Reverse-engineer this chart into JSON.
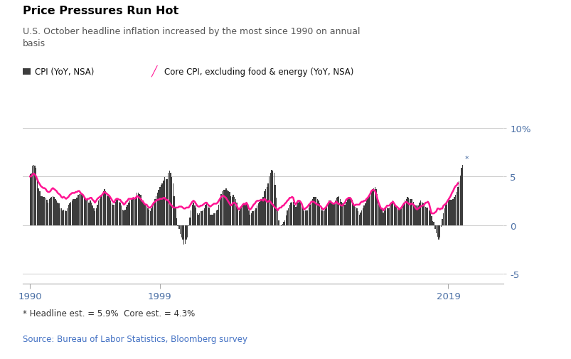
{
  "title": "Price Pressures Run Hot",
  "subtitle": "U.S. October headline inflation increased by the most since 1990 on annual\nbasis",
  "legend_cpi": "CPI (YoY, NSA)",
  "legend_core": "Core CPI, excluding food & energy (YoY, NSA)",
  "footnote": "* Headline est. = 5.9%  Core est. = 4.3%",
  "source": "Source: Bureau of Labor Statistics, Bloomberg survey",
  "bar_color": "#3d3d3d",
  "line_color": "#FF1493",
  "title_color": "#000000",
  "subtitle_color": "#555555",
  "source_color": "#4472C4",
  "footnote_color": "#333333",
  "axis_label_color": "#4a6fa5",
  "ylim": [
    -6,
    11
  ],
  "yticks": [
    -5,
    0,
    5,
    10
  ],
  "cpi_data": [
    5.2,
    5.3,
    6.1,
    6.2,
    6.1,
    5.9,
    4.8,
    3.8,
    3.5,
    3.0,
    3.0,
    2.9,
    2.9,
    2.8,
    2.6,
    2.3,
    2.7,
    2.8,
    2.9,
    3.0,
    2.9,
    2.7,
    2.5,
    2.3,
    2.2,
    1.7,
    1.7,
    1.5,
    1.6,
    1.5,
    1.4,
    1.7,
    2.1,
    2.2,
    2.4,
    2.5,
    2.7,
    2.7,
    2.7,
    2.8,
    3.1,
    3.2,
    3.3,
    3.2,
    3.0,
    2.9,
    2.7,
    2.5,
    2.6,
    2.3,
    2.5,
    2.3,
    2.0,
    1.7,
    1.4,
    1.7,
    2.1,
    2.5,
    2.7,
    3.0,
    3.1,
    3.5,
    3.7,
    3.5,
    3.3,
    3.0,
    2.9,
    2.5,
    2.2,
    2.1,
    2.1,
    2.4,
    2.6,
    2.6,
    2.4,
    2.3,
    2.0,
    1.6,
    1.5,
    1.6,
    1.9,
    2.1,
    2.3,
    2.5,
    2.6,
    2.7,
    2.8,
    2.8,
    2.9,
    3.3,
    3.3,
    3.2,
    3.1,
    2.7,
    2.5,
    2.2,
    2.1,
    2.0,
    1.7,
    1.6,
    1.4,
    1.7,
    2.1,
    2.4,
    2.7,
    3.0,
    3.3,
    3.6,
    3.9,
    4.1,
    4.3,
    4.6,
    4.9,
    4.7,
    4.7,
    5.4,
    5.6,
    5.4,
    4.9,
    4.3,
    3.0,
    1.8,
    0.7,
    -0.1,
    -0.4,
    -0.9,
    -1.3,
    -1.5,
    -2.0,
    -1.9,
    -1.5,
    -1.3,
    -0.1,
    0.8,
    1.5,
    2.1,
    2.3,
    2.0,
    1.8,
    1.2,
    1.1,
    1.2,
    1.4,
    1.4,
    1.6,
    1.7,
    2.1,
    2.3,
    2.0,
    1.8,
    1.1,
    1.1,
    1.1,
    1.2,
    1.2,
    1.5,
    1.6,
    2.1,
    2.7,
    3.2,
    3.5,
    3.6,
    3.6,
    3.8,
    3.6,
    3.5,
    3.4,
    3.0,
    2.9,
    3.1,
    2.9,
    2.7,
    2.3,
    1.7,
    1.4,
    1.7,
    1.8,
    2.0,
    2.2,
    2.1,
    2.3,
    2.0,
    1.5,
    1.1,
    1.2,
    1.4,
    1.4,
    1.5,
    1.7,
    2.0,
    2.2,
    2.4,
    2.5,
    2.7,
    2.9,
    3.5,
    3.7,
    3.9,
    4.3,
    5.0,
    5.4,
    5.7,
    5.6,
    5.4,
    4.1,
    2.8,
    1.5,
    0.5,
    0.0,
    -0.1,
    0.1,
    0.3,
    0.5,
    1.0,
    1.5,
    1.7,
    2.1,
    2.3,
    2.4,
    2.4,
    2.1,
    1.9,
    2.0,
    2.3,
    2.5,
    2.5,
    2.2,
    1.7,
    1.4,
    1.5,
    1.5,
    1.5,
    1.8,
    2.1,
    2.5,
    2.7,
    2.9,
    2.9,
    2.9,
    2.7,
    2.5,
    2.2,
    1.8,
    1.5,
    1.4,
    1.5,
    1.7,
    2.0,
    2.3,
    2.5,
    2.5,
    2.3,
    2.2,
    2.2,
    2.5,
    2.8,
    2.9,
    3.0,
    2.7,
    2.4,
    2.2,
    2.1,
    2.1,
    2.4,
    2.7,
    2.8,
    2.9,
    2.8,
    2.6,
    2.2,
    2.0,
    1.9,
    1.7,
    1.4,
    1.1,
    1.3,
    1.5,
    1.7,
    2.0,
    2.2,
    2.5,
    2.8,
    3.0,
    3.2,
    3.5,
    3.7,
    3.8,
    3.9,
    3.7,
    3.2,
    2.5,
    2.0,
    1.7,
    1.5,
    1.3,
    1.5,
    1.7,
    1.8,
    1.7,
    1.8,
    2.0,
    2.3,
    2.5,
    2.3,
    2.1,
    1.9,
    1.8,
    1.7,
    1.8,
    1.8,
    2.1,
    2.3,
    2.5,
    2.7,
    2.9,
    2.8,
    2.7,
    2.7,
    2.7,
    2.4,
    2.1,
    2.0,
    1.8,
    2.0,
    2.3,
    2.5,
    2.4,
    2.2,
    2.0,
    1.9,
    1.8,
    1.8,
    1.6,
    1.4,
    0.9,
    0.4,
    0.3,
    -0.4,
    -0.8,
    -1.2,
    -1.5,
    -1.3,
    -0.2,
    0.6,
    1.2,
    1.7,
    2.1,
    2.3,
    2.5,
    2.6,
    2.6,
    2.6,
    2.7,
    2.9,
    3.1,
    3.4,
    3.9,
    4.5,
    5.1,
    5.9,
    6.2
  ],
  "core_cpi_data": [
    5.0,
    5.0,
    5.2,
    5.3,
    5.2,
    5.0,
    4.7,
    4.4,
    4.2,
    4.0,
    3.9,
    3.8,
    3.8,
    3.7,
    3.5,
    3.4,
    3.4,
    3.5,
    3.7,
    3.8,
    3.7,
    3.6,
    3.5,
    3.3,
    3.2,
    3.1,
    2.9,
    2.8,
    2.9,
    2.8,
    2.7,
    2.8,
    2.9,
    3.1,
    3.2,
    3.3,
    3.3,
    3.3,
    3.4,
    3.4,
    3.5,
    3.5,
    3.3,
    3.2,
    3.1,
    2.9,
    2.7,
    2.6,
    2.7,
    2.7,
    2.8,
    2.8,
    2.6,
    2.5,
    2.3,
    2.5,
    2.7,
    2.8,
    2.9,
    3.0,
    3.1,
    3.3,
    3.4,
    3.3,
    3.2,
    3.1,
    3.0,
    2.8,
    2.6,
    2.4,
    2.3,
    2.6,
    2.7,
    2.7,
    2.6,
    2.6,
    2.4,
    2.3,
    2.1,
    2.2,
    2.4,
    2.5,
    2.7,
    2.7,
    2.7,
    2.7,
    2.8,
    2.7,
    2.8,
    3.0,
    2.9,
    2.8,
    2.7,
    2.5,
    2.4,
    2.2,
    2.1,
    2.1,
    1.9,
    1.8,
    1.8,
    1.9,
    2.1,
    2.3,
    2.4,
    2.5,
    2.6,
    2.6,
    2.7,
    2.7,
    2.7,
    2.8,
    2.8,
    2.6,
    2.6,
    2.5,
    2.3,
    2.1,
    2.0,
    1.8,
    1.8,
    1.8,
    1.8,
    1.8,
    1.9,
    1.9,
    1.9,
    1.8,
    1.7,
    1.7,
    1.8,
    1.8,
    1.8,
    2.0,
    2.2,
    2.4,
    2.5,
    2.4,
    2.2,
    2.0,
    1.9,
    1.9,
    2.0,
    2.0,
    2.1,
    2.2,
    2.3,
    2.3,
    2.1,
    2.0,
    1.9,
    2.0,
    2.1,
    2.2,
    2.2,
    2.2,
    2.3,
    2.5,
    2.7,
    2.9,
    3.0,
    3.0,
    2.9,
    2.8,
    2.6,
    2.4,
    2.2,
    2.0,
    2.1,
    2.3,
    2.3,
    2.2,
    2.0,
    1.7,
    1.6,
    1.8,
    1.9,
    2.1,
    2.2,
    2.1,
    2.3,
    2.1,
    1.7,
    1.6,
    1.7,
    1.9,
    2.1,
    2.2,
    2.4,
    2.5,
    2.5,
    2.5,
    2.6,
    2.6,
    2.5,
    2.7,
    2.6,
    2.4,
    2.4,
    2.5,
    2.4,
    2.2,
    2.1,
    1.9,
    1.8,
    1.7,
    1.5,
    1.7,
    1.8,
    1.8,
    2.0,
    2.0,
    2.2,
    2.3,
    2.5,
    2.6,
    2.8,
    2.8,
    2.9,
    2.8,
    2.3,
    2.1,
    2.3,
    2.5,
    2.5,
    2.4,
    2.2,
    1.8,
    1.6,
    1.7,
    1.8,
    1.9,
    2.1,
    2.2,
    2.4,
    2.4,
    2.4,
    2.3,
    2.2,
    2.1,
    2.1,
    2.0,
    1.9,
    1.7,
    1.6,
    1.7,
    1.8,
    2.0,
    2.2,
    2.4,
    2.4,
    2.3,
    2.2,
    2.2,
    2.3,
    2.4,
    2.2,
    2.2,
    2.1,
    2.0,
    2.0,
    2.2,
    2.3,
    2.6,
    2.7,
    2.8,
    2.8,
    2.7,
    2.4,
    2.1,
    2.0,
    2.1,
    2.1,
    2.1,
    2.1,
    2.3,
    2.4,
    2.4,
    2.5,
    2.5,
    2.7,
    2.8,
    3.0,
    3.2,
    3.5,
    3.6,
    3.6,
    3.5,
    3.2,
    2.7,
    2.3,
    2.0,
    1.7,
    1.7,
    1.5,
    1.7,
    1.8,
    2.0,
    2.0,
    2.0,
    2.2,
    2.3,
    2.4,
    2.2,
    2.0,
    1.9,
    1.8,
    1.6,
    1.7,
    1.8,
    2.0,
    2.2,
    2.3,
    2.4,
    2.3,
    2.2,
    2.1,
    2.2,
    2.2,
    2.1,
    1.9,
    1.7,
    1.6,
    1.7,
    1.8,
    1.9,
    2.0,
    2.0,
    2.1,
    2.3,
    2.3,
    2.4,
    2.2,
    1.7,
    1.2,
    1.2,
    1.2,
    1.3,
    1.4,
    1.7,
    1.7,
    1.6,
    1.7,
    1.7,
    2.0,
    2.1,
    2.2,
    2.4,
    2.6,
    2.8,
    3.0,
    3.3,
    3.5,
    3.8,
    4.0,
    4.1,
    4.3
  ]
}
